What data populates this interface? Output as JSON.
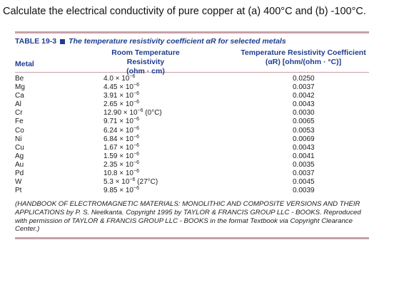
{
  "question": "Calculate the electrical conductivity of pure copper at (a) 400°C and (b) -100°C.",
  "table": {
    "number": "TABLE 19-3",
    "title": "The temperature resistivity coefficient αR for selected metals",
    "headers": {
      "metal": "Metal",
      "resistivity_line1": "Room Temperature Resistivity",
      "resistivity_line2": "(ohm · cm)",
      "coefficient_line1": "Temperature Resistivity Coefficient",
      "coefficient_line2": "(αR) [ohm/(ohm · °C)]"
    },
    "rows": [
      {
        "metal": "Be",
        "res_base": "4.0 × 10",
        "res_exp": "−6",
        "res_note": "",
        "coef": "0.0250"
      },
      {
        "metal": "Mg",
        "res_base": "4.45 × 10",
        "res_exp": "−6",
        "res_note": "",
        "coef": "0.0037"
      },
      {
        "metal": "Ca",
        "res_base": "3.91 × 10",
        "res_exp": "−6",
        "res_note": "",
        "coef": "0.0042"
      },
      {
        "metal": "Al",
        "res_base": "2.65 × 10",
        "res_exp": "−6",
        "res_note": "",
        "coef": "0.0043"
      },
      {
        "metal": "Cr",
        "res_base": "12.90 × 10",
        "res_exp": "−6",
        "res_note": " (0°C)",
        "coef": "0.0030"
      },
      {
        "metal": "Fe",
        "res_base": "9.71 × 10",
        "res_exp": "−6",
        "res_note": "",
        "coef": "0.0065"
      },
      {
        "metal": "Co",
        "res_base": "6.24 × 10",
        "res_exp": "−6",
        "res_note": "",
        "coef": "0.0053"
      },
      {
        "metal": "Ni",
        "res_base": "6.84 × 10",
        "res_exp": "−6",
        "res_note": "",
        "coef": "0.0069"
      },
      {
        "metal": "Cu",
        "res_base": "1.67 × 10",
        "res_exp": "−6",
        "res_note": "",
        "coef": "0.0043"
      },
      {
        "metal": "Ag",
        "res_base": "1.59 × 10",
        "res_exp": "−6",
        "res_note": "",
        "coef": "0.0041"
      },
      {
        "metal": "Au",
        "res_base": "2.35 × 10",
        "res_exp": "−6",
        "res_note": "",
        "coef": "0.0035"
      },
      {
        "metal": "Pd",
        "res_base": "10.8 × 10",
        "res_exp": "−6",
        "res_note": "",
        "coef": "0.0037"
      },
      {
        "metal": "W",
        "res_base": "5.3 × 10",
        "res_exp": "−6",
        "res_note": " (27°C)",
        "coef": "0.0045"
      },
      {
        "metal": "Pt",
        "res_base": "9.85 × 10",
        "res_exp": "−6",
        "res_note": "",
        "coef": "0.0039"
      }
    ],
    "source_note": "(HANDBOOK OF ELECTROMAGNETIC MATERIALS: MONOLITHIC AND COMPOSITE VERSIONS AND THEIR APPLICATIONS by P. S. Neelkanta. Copyright 1995 by TAYLOR & FRANCIS GROUP LLC - BOOKS. Reproduced with permission of TAYLOR & FRANCIS GROUP LLC - BOOKS in the format Textbook via Copyright Clearance Center.)"
  },
  "colors": {
    "accent": "#1f3c8f",
    "rule": "#c8a0a8"
  }
}
